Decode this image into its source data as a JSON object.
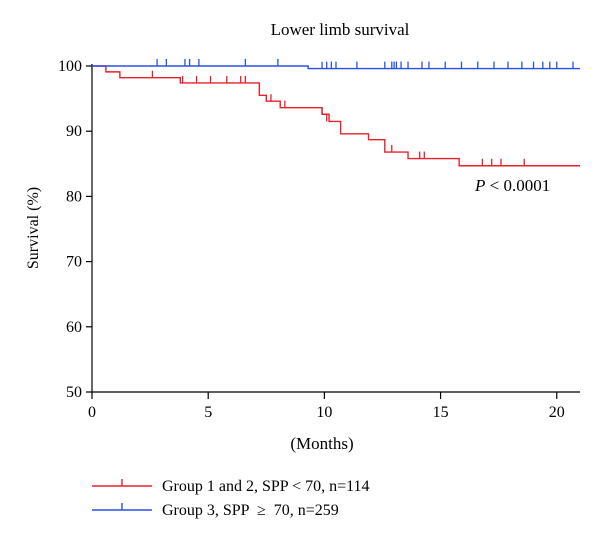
{
  "chart_data": {
    "type": "line",
    "title": "Lower limb survival",
    "xlabel": "(Months)",
    "ylabel": "Survival (%)",
    "xlim": [
      0,
      21
    ],
    "ylim": [
      50,
      100
    ],
    "x_ticks": [
      0,
      5,
      10,
      15,
      20
    ],
    "y_ticks": [
      50,
      60,
      70,
      80,
      90,
      100
    ],
    "annotation": {
      "italic": "P",
      "rest": " < 0.0001"
    },
    "legend_position": "bottom-left",
    "series": [
      {
        "name": "Group 1 and 2, SPP < 70, n=114",
        "color": "#e8202a",
        "steps": [
          [
            0,
            100
          ],
          [
            0.6,
            99.1
          ],
          [
            1.2,
            98.2
          ],
          [
            3.8,
            97.4
          ],
          [
            7.2,
            95.5
          ],
          [
            7.5,
            94.6
          ],
          [
            8.1,
            93.6
          ],
          [
            9.9,
            92.6
          ],
          [
            10.2,
            91.5
          ],
          [
            10.7,
            89.6
          ],
          [
            11.9,
            88.7
          ],
          [
            12.6,
            86.8
          ],
          [
            13.6,
            85.8
          ],
          [
            15.8,
            84.7
          ],
          [
            21,
            84.7
          ]
        ],
        "censored": [
          [
            2.6,
            98.2
          ],
          [
            3.9,
            97.4
          ],
          [
            4.5,
            97.4
          ],
          [
            5.1,
            97.4
          ],
          [
            5.8,
            97.4
          ],
          [
            6.4,
            97.4
          ],
          [
            6.6,
            97.4
          ],
          [
            7.7,
            94.6
          ],
          [
            8.3,
            93.6
          ],
          [
            9.9,
            92.6
          ],
          [
            10.1,
            91.5
          ],
          [
            12.9,
            86.8
          ],
          [
            14.1,
            85.8
          ],
          [
            14.3,
            85.8
          ],
          [
            16.8,
            84.7
          ],
          [
            17.2,
            84.7
          ],
          [
            17.6,
            84.7
          ],
          [
            18.6,
            84.7
          ]
        ]
      },
      {
        "name": "Group 3, SPP  ≥  70, n=259",
        "color": "#2850e8",
        "steps": [
          [
            0,
            100
          ],
          [
            9.3,
            99.6
          ],
          [
            21,
            99.6
          ]
        ],
        "censored": [
          [
            2.8,
            100
          ],
          [
            3.2,
            100
          ],
          [
            4.0,
            100
          ],
          [
            4.2,
            100
          ],
          [
            4.6,
            100
          ],
          [
            6.6,
            100
          ],
          [
            8.0,
            100
          ],
          [
            9.9,
            99.6
          ],
          [
            10.1,
            99.6
          ],
          [
            10.3,
            99.6
          ],
          [
            10.5,
            99.6
          ],
          [
            11.4,
            99.6
          ],
          [
            12.6,
            99.6
          ],
          [
            12.9,
            99.6
          ],
          [
            13.0,
            99.6
          ],
          [
            13.1,
            99.6
          ],
          [
            13.3,
            99.6
          ],
          [
            13.6,
            99.6
          ],
          [
            14.2,
            99.6
          ],
          [
            14.5,
            99.6
          ],
          [
            15.2,
            99.6
          ],
          [
            15.9,
            99.6
          ],
          [
            16.6,
            99.6
          ],
          [
            17.3,
            99.6
          ],
          [
            17.9,
            99.6
          ],
          [
            18.5,
            99.6
          ],
          [
            19.0,
            99.6
          ],
          [
            19.4,
            99.6
          ],
          [
            19.7,
            99.6
          ],
          [
            20.0,
            99.6
          ],
          [
            20.7,
            99.6
          ]
        ]
      }
    ]
  }
}
